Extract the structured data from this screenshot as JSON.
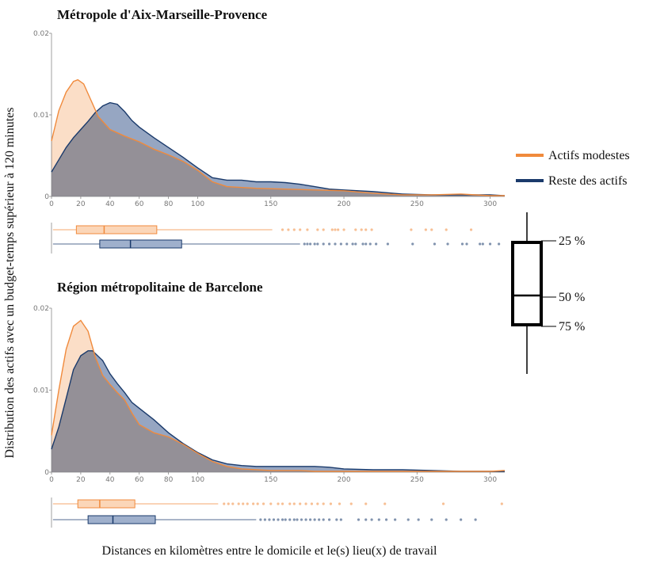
{
  "figure": {
    "ylabel": "Distribution des actifs avec un budget-temps supérieur à 120 minutes",
    "xlabel": "Distances en kilomètres entre le domicile et le(s) lieu(x) de travail"
  },
  "legend": {
    "series": [
      {
        "name": "Actifs modestes",
        "color": "#f08a3c"
      },
      {
        "name": "Reste des actifs",
        "color": "#1a3a6b"
      }
    ]
  },
  "boxplot_key": {
    "labels": [
      "25 %",
      "50 %",
      "75 %"
    ]
  },
  "chart_data": [
    {
      "type": "area",
      "title": "Métropole d'Aix-Marseille-Provence",
      "xlim": [
        0,
        310
      ],
      "ylim": [
        0,
        0.02
      ],
      "xticks": [
        0,
        20,
        40,
        60,
        80,
        100,
        150,
        200,
        250,
        300
      ],
      "yticks": [
        0,
        0.01,
        0.02
      ],
      "ytick_labels": [
        "0",
        "0.01",
        "0.02"
      ],
      "series": [
        {
          "name": "Actifs modestes",
          "color": "#f08a3c",
          "fill": "#f9c9a4",
          "x": [
            0,
            5,
            10,
            15,
            18,
            22,
            27,
            32,
            40,
            50,
            60,
            70,
            80,
            90,
            100,
            110,
            120,
            140,
            160,
            180,
            200,
            220,
            240,
            260,
            280,
            300,
            310
          ],
          "y": [
            0.0068,
            0.0105,
            0.0128,
            0.0141,
            0.0143,
            0.0138,
            0.0118,
            0.0098,
            0.0082,
            0.0074,
            0.0067,
            0.0058,
            0.0051,
            0.0043,
            0.0032,
            0.0018,
            0.0012,
            0.001,
            0.0009,
            0.0008,
            0.0007,
            0.0004,
            0.0002,
            0.0002,
            0.0003,
            0.0001,
            0.0001
          ]
        },
        {
          "name": "Reste des actifs",
          "color": "#1a3a6b",
          "fill": "#7f93b5",
          "x": [
            0,
            5,
            10,
            15,
            20,
            25,
            30,
            35,
            40,
            45,
            50,
            55,
            60,
            70,
            80,
            90,
            100,
            110,
            120,
            130,
            140,
            150,
            160,
            170,
            180,
            190,
            200,
            220,
            240,
            260,
            280,
            300,
            310
          ],
          "y": [
            0.003,
            0.0045,
            0.006,
            0.0072,
            0.0082,
            0.0092,
            0.0103,
            0.0111,
            0.0115,
            0.0113,
            0.0104,
            0.0093,
            0.0085,
            0.0072,
            0.006,
            0.0048,
            0.0035,
            0.0023,
            0.002,
            0.002,
            0.0018,
            0.0018,
            0.0017,
            0.0015,
            0.0012,
            0.0009,
            0.0008,
            0.0006,
            0.0003,
            0.0002,
            0.0002,
            0.0002,
            0.0001
          ]
        }
      ],
      "boxplots": [
        {
          "name": "Actifs modestes",
          "whisker_low": 1,
          "q1": 17,
          "median": 36,
          "q3": 72,
          "whisker_high": 151,
          "outliers": [
            158,
            162,
            166,
            170,
            175,
            182,
            186,
            192,
            194,
            196,
            200,
            208,
            212,
            215,
            219,
            246,
            256,
            260,
            270,
            287
          ]
        },
        {
          "name": "Reste des actifs",
          "whisker_low": 1,
          "q1": 33,
          "median": 54,
          "q3": 89,
          "whisker_high": 170,
          "outliers": [
            173,
            175,
            177,
            180,
            182,
            186,
            190,
            194,
            198,
            202,
            206,
            208,
            213,
            215,
            218,
            222,
            230,
            247,
            262,
            271,
            281,
            284,
            293,
            295,
            300,
            306
          ]
        }
      ]
    },
    {
      "type": "area",
      "title": "Région métropolitaine de Barcelone",
      "xlim": [
        0,
        310
      ],
      "ylim": [
        0,
        0.02
      ],
      "xticks": [
        0,
        20,
        40,
        60,
        80,
        100,
        150,
        200,
        250,
        300
      ],
      "yticks": [
        0,
        0.01,
        0.02
      ],
      "ytick_labels": [
        "0",
        "0.01",
        "0.02"
      ],
      "series": [
        {
          "name": "Actifs modestes",
          "color": "#f08a3c",
          "fill": "#f9c9a4",
          "x": [
            0,
            5,
            10,
            15,
            20,
            25,
            30,
            35,
            40,
            45,
            50,
            55,
            60,
            70,
            80,
            90,
            100,
            110,
            120,
            130,
            140,
            150,
            160,
            170,
            180,
            190,
            200,
            220,
            240,
            260,
            280,
            300,
            310
          ],
          "y": [
            0.0045,
            0.01,
            0.015,
            0.0178,
            0.0185,
            0.0172,
            0.014,
            0.0118,
            0.0107,
            0.0097,
            0.0088,
            0.0072,
            0.0058,
            0.0048,
            0.0043,
            0.0034,
            0.0023,
            0.0013,
            0.0007,
            0.0004,
            0.0003,
            0.0002,
            0.0002,
            0.0002,
            0.0001,
            0.0001,
            0.0001,
            0.0001,
            0.0001,
            0.0001,
            0.0001,
            0.0001,
            0.0002
          ]
        },
        {
          "name": "Reste des actifs",
          "color": "#1a3a6b",
          "fill": "#7f93b5",
          "x": [
            0,
            5,
            10,
            15,
            20,
            25,
            28,
            35,
            40,
            45,
            50,
            55,
            60,
            70,
            80,
            90,
            100,
            110,
            120,
            130,
            140,
            150,
            160,
            170,
            180,
            190,
            200,
            220,
            240,
            260,
            280,
            300,
            310
          ],
          "y": [
            0.0028,
            0.0055,
            0.009,
            0.0125,
            0.0142,
            0.0148,
            0.0148,
            0.0136,
            0.012,
            0.0108,
            0.0097,
            0.0085,
            0.0078,
            0.0064,
            0.0048,
            0.0035,
            0.0024,
            0.0015,
            0.001,
            0.0008,
            0.0007,
            0.0007,
            0.0007,
            0.0007,
            0.0007,
            0.0006,
            0.0004,
            0.0003,
            0.0003,
            0.0002,
            0.0001,
            0.0001,
            0.0001
          ]
        }
      ],
      "boxplots": [
        {
          "name": "Actifs modestes",
          "whisker_low": 1,
          "q1": 18,
          "median": 33,
          "q3": 57,
          "whisker_high": 114,
          "outliers": [
            118,
            121,
            124,
            128,
            131,
            134,
            138,
            141,
            145,
            150,
            155,
            158,
            163,
            166,
            170,
            174,
            178,
            182,
            186,
            191,
            197,
            205,
            215,
            228,
            268,
            308
          ]
        },
        {
          "name": "Reste des actifs",
          "whisker_low": 1,
          "q1": 25,
          "median": 42,
          "q3": 71,
          "whisker_high": 140,
          "outliers": [
            143,
            146,
            149,
            152,
            155,
            158,
            160,
            163,
            166,
            168,
            171,
            174,
            177,
            180,
            183,
            186,
            190,
            195,
            198,
            210,
            215,
            219,
            224,
            229,
            235,
            244,
            251,
            260,
            270,
            280,
            290
          ]
        }
      ]
    }
  ]
}
